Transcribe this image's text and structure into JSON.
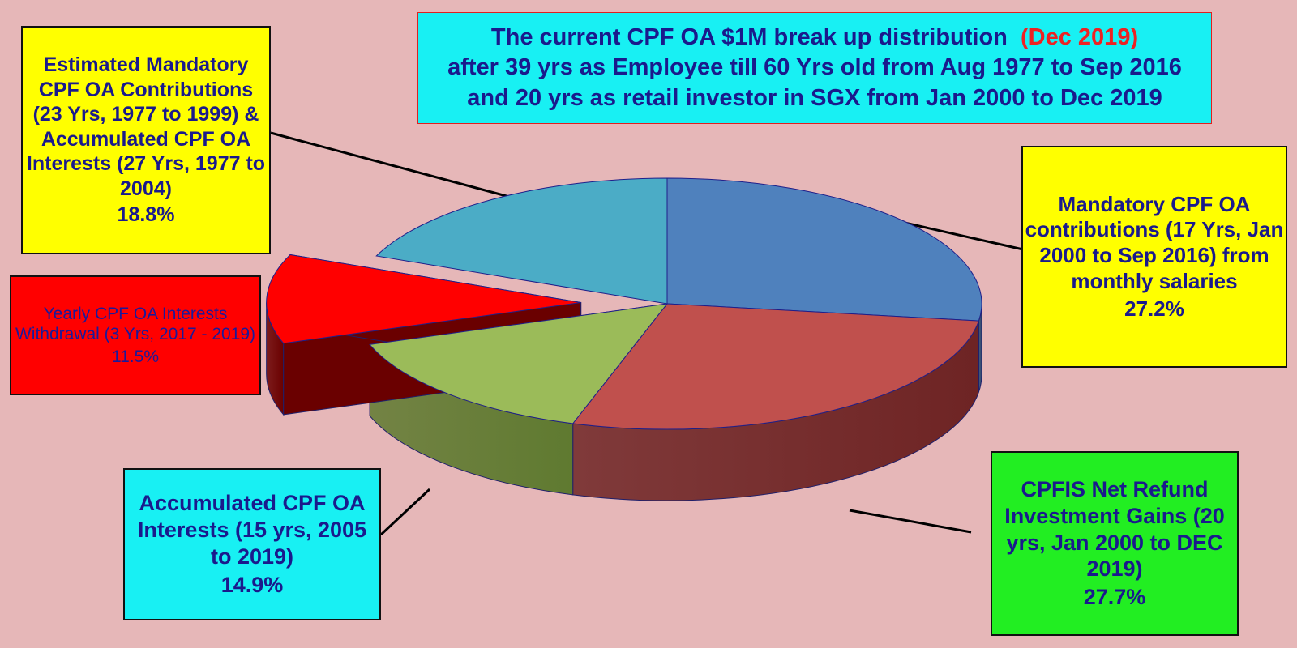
{
  "title": {
    "line1": "The current CPF OA $1M break up distribution",
    "line1_highlight": "(Dec 2019)",
    "line2": "after 39 yrs as Employee till 60 Yrs old from Aug 1977 to Sep 2016",
    "line3": "and 20 yrs as retail investor in SGX from Jan 2000 to Dec 2019"
  },
  "labels": {
    "estimated": "Estimated Mandatory CPF OA Contributions (23 Yrs, 1977 to 1999) & Accumulated CPF OA Interests (27 Yrs, 1977 to 2004)",
    "estimated_pct": "18.8%",
    "yearly": "Yearly CPF OA Interests Withdrawal (3 Yrs, 2017 - 2019)",
    "yearly_pct": "11.5%",
    "mandatory": "Mandatory CPF OA contributions (17 Yrs, Jan 2000 to Sep 2016) from monthly salaries",
    "mandatory_pct": "27.2%",
    "accumulated": "Accumulated CPF OA Interests (15 yrs, 2005 to 2019)",
    "accumulated_pct": "14.9%",
    "cpfis": "CPFIS Net Refund Investment Gains (20 yrs, Jan 2000 to DEC 2019)",
    "cpfis_pct": "27.7%"
  },
  "colors": {
    "background": "#e6b7b8",
    "title_box": "#18f0f3",
    "title_highlight": "#ee2222",
    "label_yellow": "#ffff00",
    "label_cyan": "#18f0f3",
    "label_red": "#ff0000",
    "label_green": "#22ee22"
  },
  "chart_data": {
    "type": "pie",
    "style": "3d-exploded",
    "slices": [
      {
        "label": "Mandatory CPF OA contributions (17 Yrs, Jan 2000 to Sep 2016) from monthly salaries",
        "value": 27.2,
        "top": "#4f81bd",
        "side": "#2c4a70"
      },
      {
        "label": "CPFIS Net Refund Investment Gains (20 yrs, Jan 2000 to DEC 2019)",
        "value": 27.7,
        "top": "#c0504d",
        "side": "#6e2424"
      },
      {
        "label": "Accumulated CPF OA Interests (15 yrs, 2005 to 2019)",
        "value": 14.9,
        "top": "#9bbb59",
        "side": "#5f7a30"
      },
      {
        "label": "Yearly CPF OA Interests Withdrawal (3 Yrs, 2017 - 2019)",
        "value": 11.5,
        "top": "#ff0000",
        "side": "#6a0000",
        "exploded": true
      },
      {
        "label": "Estimated Mandatory CPF OA Contributions (23 Yrs, 1977 to 1999) & Accumulated CPF OA Interests (27 Yrs, 1977 to 2004)",
        "value": 18.8,
        "top": "#4bacc6",
        "side": "#1f4f5a"
      }
    ],
    "start_angle_deg": -90,
    "direction": "clockwise"
  }
}
